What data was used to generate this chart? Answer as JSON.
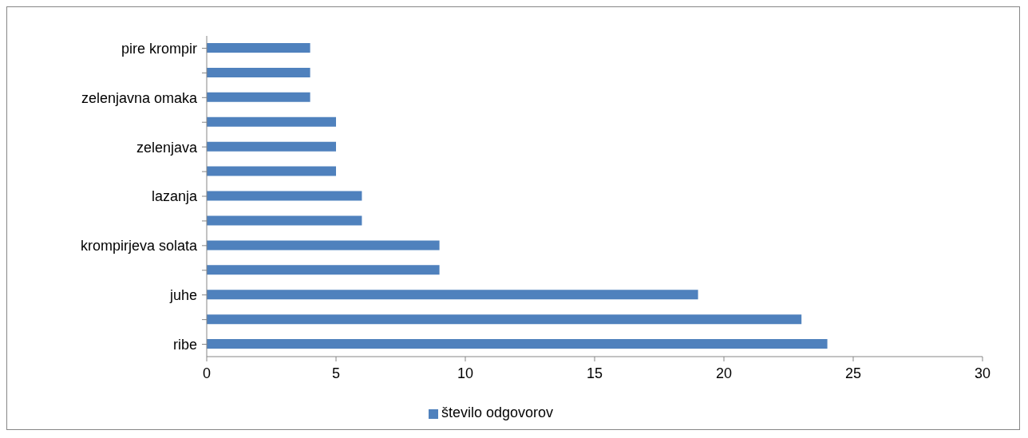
{
  "chart_data": {
    "type": "bar",
    "orientation": "horizontal",
    "categories": [
      "pire krompir",
      null,
      "zelenjavna omaka",
      null,
      "zelenjava",
      null,
      "lazanja",
      null,
      "krompirjeva solata",
      null,
      "juhe",
      null,
      "ribe"
    ],
    "series": [
      {
        "name": "število odgovorov",
        "color": "#4f81bd",
        "values": [
          4,
          4,
          4,
          5,
          5,
          5,
          6,
          6,
          9,
          9,
          19,
          23,
          24
        ]
      }
    ],
    "xlim": [
      0,
      30
    ],
    "xticks": [
      0,
      5,
      10,
      15,
      20,
      25,
      30
    ],
    "grid": false,
    "legend": "bottom"
  }
}
